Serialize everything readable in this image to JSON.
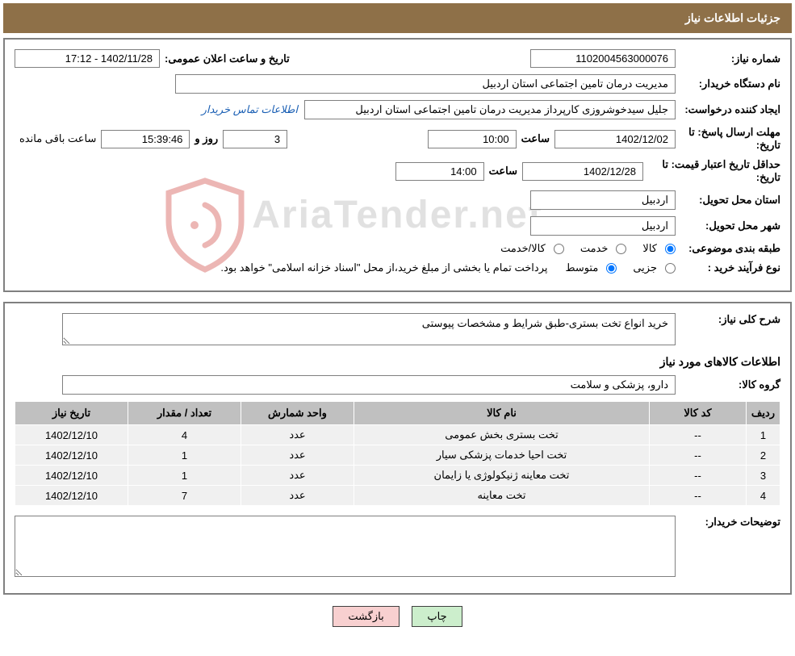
{
  "header": {
    "title": "جزئیات اطلاعات نیاز"
  },
  "watermark": {
    "text": "AriaTender.net"
  },
  "fields": {
    "need_number": {
      "label": "شماره نیاز:",
      "value": "1102004563000076"
    },
    "announce_datetime": {
      "label": "تاریخ و ساعت اعلان عمومی:",
      "value": "1402/11/28 - 17:12"
    },
    "buyer_org": {
      "label": "نام دستگاه خریدار:",
      "value": "مدیریت درمان تامین اجتماعی استان اردبیل"
    },
    "requester": {
      "label": "ایجاد کننده درخواست:",
      "value": "جلیل سیدخوشروزی کارپرداز مدیریت درمان تامین اجتماعی استان اردبیل"
    },
    "contact_link": "اطلاعات تماس خریدار",
    "deadline": {
      "label": "مهلت ارسال پاسخ: تا تاریخ:",
      "date": "1402/12/02",
      "time_label": "ساعت",
      "time": "10:00",
      "days_label": "روز و",
      "days": "3",
      "countdown": "15:39:46",
      "remaining": "ساعت باقی مانده"
    },
    "validity": {
      "label": "حداقل تاریخ اعتبار قیمت: تا تاریخ:",
      "date": "1402/12/28",
      "time_label": "ساعت",
      "time": "14:00"
    },
    "delivery_province": {
      "label": "استان محل تحویل:",
      "value": "اردبیل"
    },
    "delivery_city": {
      "label": "شهر محل تحویل:",
      "value": "اردبیل"
    },
    "classification": {
      "label": "طبقه بندی موضوعی:",
      "options": [
        {
          "label": "کالا",
          "checked": true
        },
        {
          "label": "خدمت",
          "checked": false
        },
        {
          "label": "کالا/خدمت",
          "checked": false
        }
      ]
    },
    "purchase_type": {
      "label": "نوع فرآیند خرید :",
      "options": [
        {
          "label": "جزیی",
          "checked": false
        },
        {
          "label": "متوسط",
          "checked": true
        }
      ],
      "note": "پرداخت تمام یا بخشی از مبلغ خرید،از محل \"اسناد خزانه اسلامی\" خواهد بود."
    }
  },
  "detail": {
    "overall_desc": {
      "label": "شرح کلی نیاز:",
      "value": "خرید انواع تخت بستری-طبق شرایط و مشخصات پیوستی"
    },
    "info_title": "اطلاعات کالاهای مورد نیاز",
    "goods_group": {
      "label": "گروه کالا:",
      "value": "دارو، پزشکی و سلامت"
    },
    "buyer_notes_label": "توضیحات خریدار:"
  },
  "table": {
    "headers": {
      "row": "ردیف",
      "code": "کد کالا",
      "name": "نام کالا",
      "unit": "واحد شمارش",
      "qty": "تعداد / مقدار",
      "date": "تاریخ نیاز"
    },
    "rows": [
      {
        "idx": "1",
        "code": "--",
        "name": "تخت بستری بخش عمومی",
        "unit": "عدد",
        "qty": "4",
        "date": "1402/12/10"
      },
      {
        "idx": "2",
        "code": "--",
        "name": "تخت احیا خدمات پزشکی سیار",
        "unit": "عدد",
        "qty": "1",
        "date": "1402/12/10"
      },
      {
        "idx": "3",
        "code": "--",
        "name": "تخت معاینه ژنیکولوژی یا زایمان",
        "unit": "عدد",
        "qty": "1",
        "date": "1402/12/10"
      },
      {
        "idx": "4",
        "code": "--",
        "name": "تخت معاینه",
        "unit": "عدد",
        "qty": "7",
        "date": "1402/12/10"
      }
    ]
  },
  "buttons": {
    "print": "چاپ",
    "back": "بازگشت"
  },
  "colors": {
    "header_bg": "#8e7048",
    "border": "#808080",
    "th_bg": "#c0c0c0",
    "td_bg": "#f0f0f0",
    "btn_print": "#cceecc",
    "btn_back": "#f8d0d0",
    "link": "#1a5fb4",
    "shield_stroke": "#c9302c"
  }
}
